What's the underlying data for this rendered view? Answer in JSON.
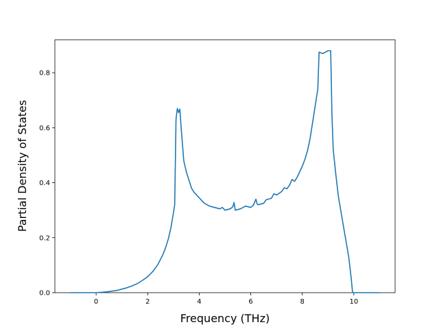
{
  "chart_data": {
    "type": "line",
    "title": "",
    "xlabel": "Frequency (THz)",
    "ylabel": "Partial Density of States",
    "xlim": [
      -1.6,
      11.6
    ],
    "ylim": [
      0.0,
      0.92
    ],
    "xticks": [
      0,
      2,
      4,
      6,
      8,
      10
    ],
    "yticks": [
      0.0,
      0.2,
      0.4,
      0.6,
      0.8
    ],
    "xtick_labels": [
      "0",
      "2",
      "4",
      "6",
      "8",
      "10"
    ],
    "ytick_labels": [
      "0.0",
      "0.2",
      "0.4",
      "0.6",
      "0.8"
    ],
    "grid": false,
    "legend": "none",
    "series": [
      {
        "color": "#1f77b4",
        "x": [
          -1.0,
          -0.5,
          0.0,
          0.4,
          0.8,
          1.0,
          1.2,
          1.4,
          1.6,
          1.8,
          2.0,
          2.2,
          2.4,
          2.6,
          2.7,
          2.8,
          2.9,
          3.0,
          3.05,
          3.1,
          3.15,
          3.2,
          3.25,
          3.3,
          3.4,
          3.5,
          3.6,
          3.7,
          3.8,
          4.0,
          4.2,
          4.4,
          4.6,
          4.8,
          4.9,
          5.0,
          5.2,
          5.3,
          5.35,
          5.4,
          5.6,
          5.8,
          6.0,
          6.1,
          6.2,
          6.25,
          6.3,
          6.5,
          6.6,
          6.8,
          6.9,
          7.0,
          7.2,
          7.3,
          7.4,
          7.5,
          7.6,
          7.7,
          7.8,
          7.9,
          8.0,
          8.1,
          8.2,
          8.3,
          8.4,
          8.5,
          8.6,
          8.65,
          8.7,
          8.8,
          9.0,
          9.1,
          9.15,
          9.2,
          9.3,
          9.4,
          9.6,
          9.8,
          9.9,
          9.95,
          10.2,
          10.6,
          11.0
        ],
        "y": [
          0.0,
          0.0,
          0.0,
          0.003,
          0.008,
          0.013,
          0.018,
          0.025,
          0.033,
          0.045,
          0.058,
          0.077,
          0.103,
          0.14,
          0.165,
          0.195,
          0.235,
          0.29,
          0.32,
          0.63,
          0.67,
          0.655,
          0.668,
          0.6,
          0.48,
          0.44,
          0.41,
          0.38,
          0.365,
          0.345,
          0.325,
          0.315,
          0.31,
          0.305,
          0.31,
          0.3,
          0.305,
          0.312,
          0.328,
          0.3,
          0.305,
          0.315,
          0.31,
          0.318,
          0.34,
          0.322,
          0.32,
          0.325,
          0.338,
          0.343,
          0.36,
          0.355,
          0.368,
          0.382,
          0.378,
          0.39,
          0.412,
          0.405,
          0.42,
          0.44,
          0.46,
          0.485,
          0.515,
          0.56,
          0.62,
          0.68,
          0.74,
          0.875,
          0.873,
          0.87,
          0.88,
          0.88,
          0.65,
          0.52,
          0.43,
          0.35,
          0.24,
          0.13,
          0.05,
          0.0,
          0.0,
          0.0,
          0.0
        ]
      }
    ]
  }
}
